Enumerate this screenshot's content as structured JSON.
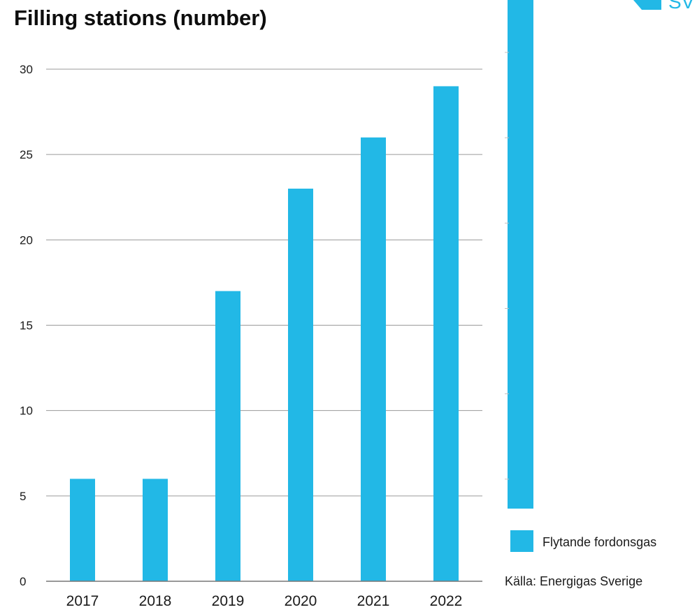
{
  "chart_data": {
    "type": "bar",
    "title": "Filling stations (number)",
    "categories": [
      "2017",
      "2018",
      "2019",
      "2020",
      "2021",
      "2022"
    ],
    "series": [
      {
        "name": "Flytande fordonsgas",
        "values": [
          6,
          6,
          17,
          23,
          26,
          29
        ],
        "color": "#22b8e6"
      }
    ],
    "ylim": [
      0,
      30
    ],
    "yticks": [
      0,
      5,
      10,
      15,
      20,
      25,
      30
    ],
    "grid": true,
    "legend_position": "bottom-right"
  },
  "source": "Källa: Energigas Sverige",
  "logo": {
    "text": "SV",
    "color": "#22b8e6"
  }
}
